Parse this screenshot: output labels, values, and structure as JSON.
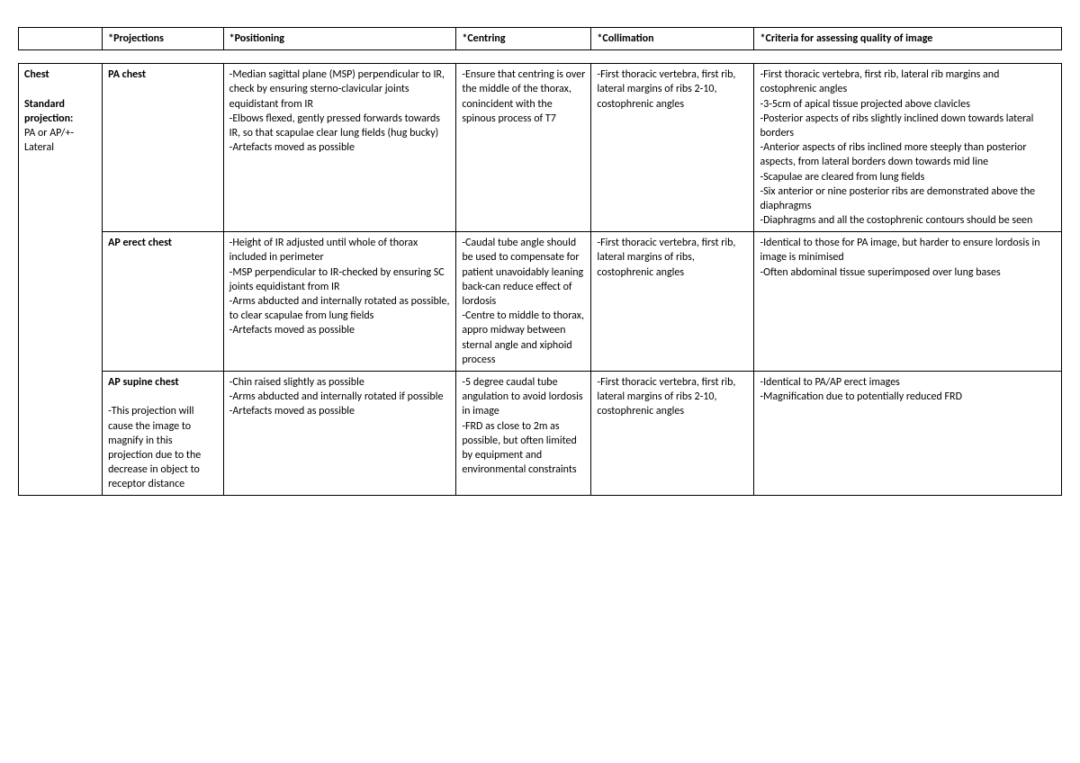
{
  "headers": {
    "anatomy": "",
    "projections": "*Projections",
    "positioning": "*Positioning",
    "centring": "*Centring",
    "collimation": "*Collimation",
    "criteria": "*Criteria for assessing quality of image"
  },
  "anatomy": {
    "title": "Chest",
    "subtitle_label": "Standard projection:",
    "subtitle_value": "PA or AP/+- Lateral"
  },
  "rows": [
    {
      "projection_title": "PA chest",
      "projection_note": "",
      "positioning": "-Median sagittal plane (MSP) perpendicular to IR, check by ensuring sterno-clavicular joints equidistant from IR\n-Elbows flexed, gently pressed forwards towards IR, so that scapulae clear lung fields (hug bucky)\n-Artefacts moved as possible",
      "centring": "-Ensure that centring is over the middle of the thorax, conincident with the spinous process of T7",
      "collimation": "-First thoracic vertebra, first rib, lateral margins of ribs 2-10, costophrenic angles",
      "criteria": "-First thoracic vertebra, first rib, lateral rib margins and costophrenic angles\n-3-5cm of apical tissue projected above clavicles\n-Posterior aspects of ribs slightly inclined down towards lateral borders\n-Anterior aspects of ribs inclined more steeply than posterior aspects, from lateral borders down towards mid line\n-Scapulae are cleared from lung fields\n-Six anterior or nine posterior ribs are demonstrated above the diaphragms\n-Diaphragms and all the costophrenic contours should be seen"
    },
    {
      "projection_title": "AP erect chest",
      "projection_note": "",
      "positioning": "-Height of IR adjusted until whole of thorax included in perimeter\n-MSP perpendicular to IR-checked by ensuring SC joints equidistant from IR\n-Arms abducted and internally rotated as possible, to clear scapulae from lung fields\n-Artefacts moved as possible",
      "centring": "-Caudal tube angle should be used to compensate for patient unavoidably leaning back-can reduce effect of lordosis\n-Centre to middle to thorax, appro midway between sternal angle and xiphoid process",
      "collimation": "-First thoracic vertebra, first rib, lateral margins of ribs, costophrenic angles",
      "criteria": "-Identical to those for PA image, but harder to ensure lordosis in image is minimised\n-Often abdominal tissue superimposed over lung bases"
    },
    {
      "projection_title": "AP supine chest",
      "projection_note": "-This projection will cause the image to magnify in this projection due to the decrease in object to receptor distance",
      "positioning": "-Chin raised slightly as possible\n-Arms abducted and internally rotated if possible\n-Artefacts moved as possible",
      "centring": "-5 degree caudal tube angulation to avoid lordosis in image\n-FRD as close to 2m as possible, but often limited by equipment and environmental constraints",
      "collimation": "-First thoracic vertebra, first rib, lateral margins of ribs 2-10, costophrenic angles",
      "criteria": "-Identical to PA/AP erect images\n-Magnification due to potentially reduced FRD"
    }
  ]
}
